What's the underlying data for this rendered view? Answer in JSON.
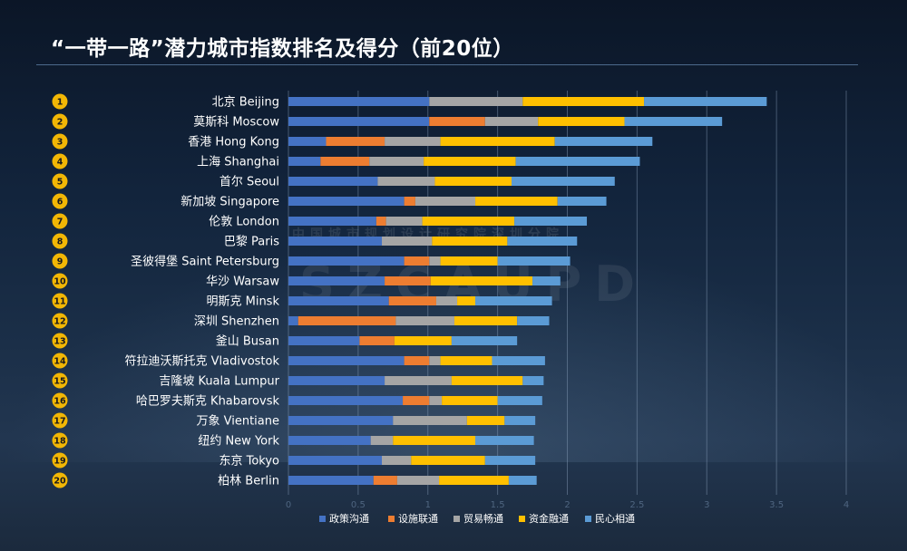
{
  "title": "“一带一路”潜力城市指数排名及得分（前20位）",
  "watermark": {
    "cn": "中国城市规划设计研究院深圳分院",
    "en": "SZCAUPD"
  },
  "colors": {
    "政策沟通": "#4472c4",
    "设施联通": "#ed7d31",
    "贸易畅通": "#a5a5a5",
    "资金融通": "#ffc000",
    "民心相通": "#5b9bd5",
    "rank_badge": "#f2b705"
  },
  "chart_data": {
    "type": "bar",
    "orientation": "horizontal",
    "stacked": true,
    "title": "“一带一路”潜力城市指数排名及得分（前20位）",
    "xlim": [
      0,
      4
    ],
    "x_ticks": [
      "0",
      "0.5",
      "1",
      "1.5",
      "2",
      "2.5",
      "3",
      "3.5",
      "4"
    ],
    "grid": true,
    "legend_position": "bottom",
    "ranks": [
      "1",
      "2",
      "3",
      "4",
      "5",
      "6",
      "7",
      "8",
      "9",
      "10",
      "11",
      "12",
      "13",
      "14",
      "15",
      "16",
      "17",
      "18",
      "19",
      "20"
    ],
    "categories": [
      "北京 Beijing",
      "莫斯科 Moscow",
      "香港 Hong Kong",
      "上海 Shanghai",
      "首尔 Seoul",
      "新加坡 Singapore",
      "伦敦 London",
      "巴黎 Paris",
      "圣彼得堡 Saint Petersburg",
      "华沙 Warsaw",
      "明斯克 Minsk",
      "深圳 Shenzhen",
      "釜山 Busan",
      "符拉迪沃斯托克 Vladivostok",
      "吉隆坡 Kuala Lumpur",
      "哈巴罗夫斯克 Khabarovsk",
      "万象 Vientiane",
      "纽约 New York",
      "东京 Tokyo",
      "柏林 Berlin"
    ],
    "series": [
      {
        "name": "政策沟通",
        "values": [
          1.01,
          1.01,
          0.27,
          0.23,
          0.64,
          0.83,
          0.63,
          0.67,
          0.83,
          0.69,
          0.72,
          0.07,
          0.51,
          0.83,
          0.69,
          0.82,
          0.75,
          0.59,
          0.67,
          0.61
        ]
      },
      {
        "name": "设施联通",
        "values": [
          0.0,
          0.4,
          0.42,
          0.35,
          0.0,
          0.08,
          0.07,
          0.0,
          0.18,
          0.33,
          0.34,
          0.7,
          0.25,
          0.18,
          0.0,
          0.19,
          0.0,
          0.0,
          0.0,
          0.17
        ]
      },
      {
        "name": "贸易畅通",
        "values": [
          0.67,
          0.38,
          0.4,
          0.39,
          0.41,
          0.43,
          0.26,
          0.36,
          0.08,
          0.0,
          0.15,
          0.42,
          0.0,
          0.08,
          0.48,
          0.09,
          0.53,
          0.16,
          0.21,
          0.3
        ]
      },
      {
        "name": "资金融通",
        "values": [
          0.87,
          0.62,
          0.82,
          0.66,
          0.55,
          0.59,
          0.66,
          0.54,
          0.41,
          0.73,
          0.13,
          0.45,
          0.41,
          0.37,
          0.51,
          0.4,
          0.27,
          0.59,
          0.53,
          0.5
        ]
      },
      {
        "name": "民心相通",
        "values": [
          0.88,
          0.7,
          0.7,
          0.89,
          0.74,
          0.35,
          0.52,
          0.5,
          0.52,
          0.2,
          0.55,
          0.23,
          0.47,
          0.38,
          0.15,
          0.32,
          0.22,
          0.42,
          0.36,
          0.2
        ]
      }
    ]
  }
}
